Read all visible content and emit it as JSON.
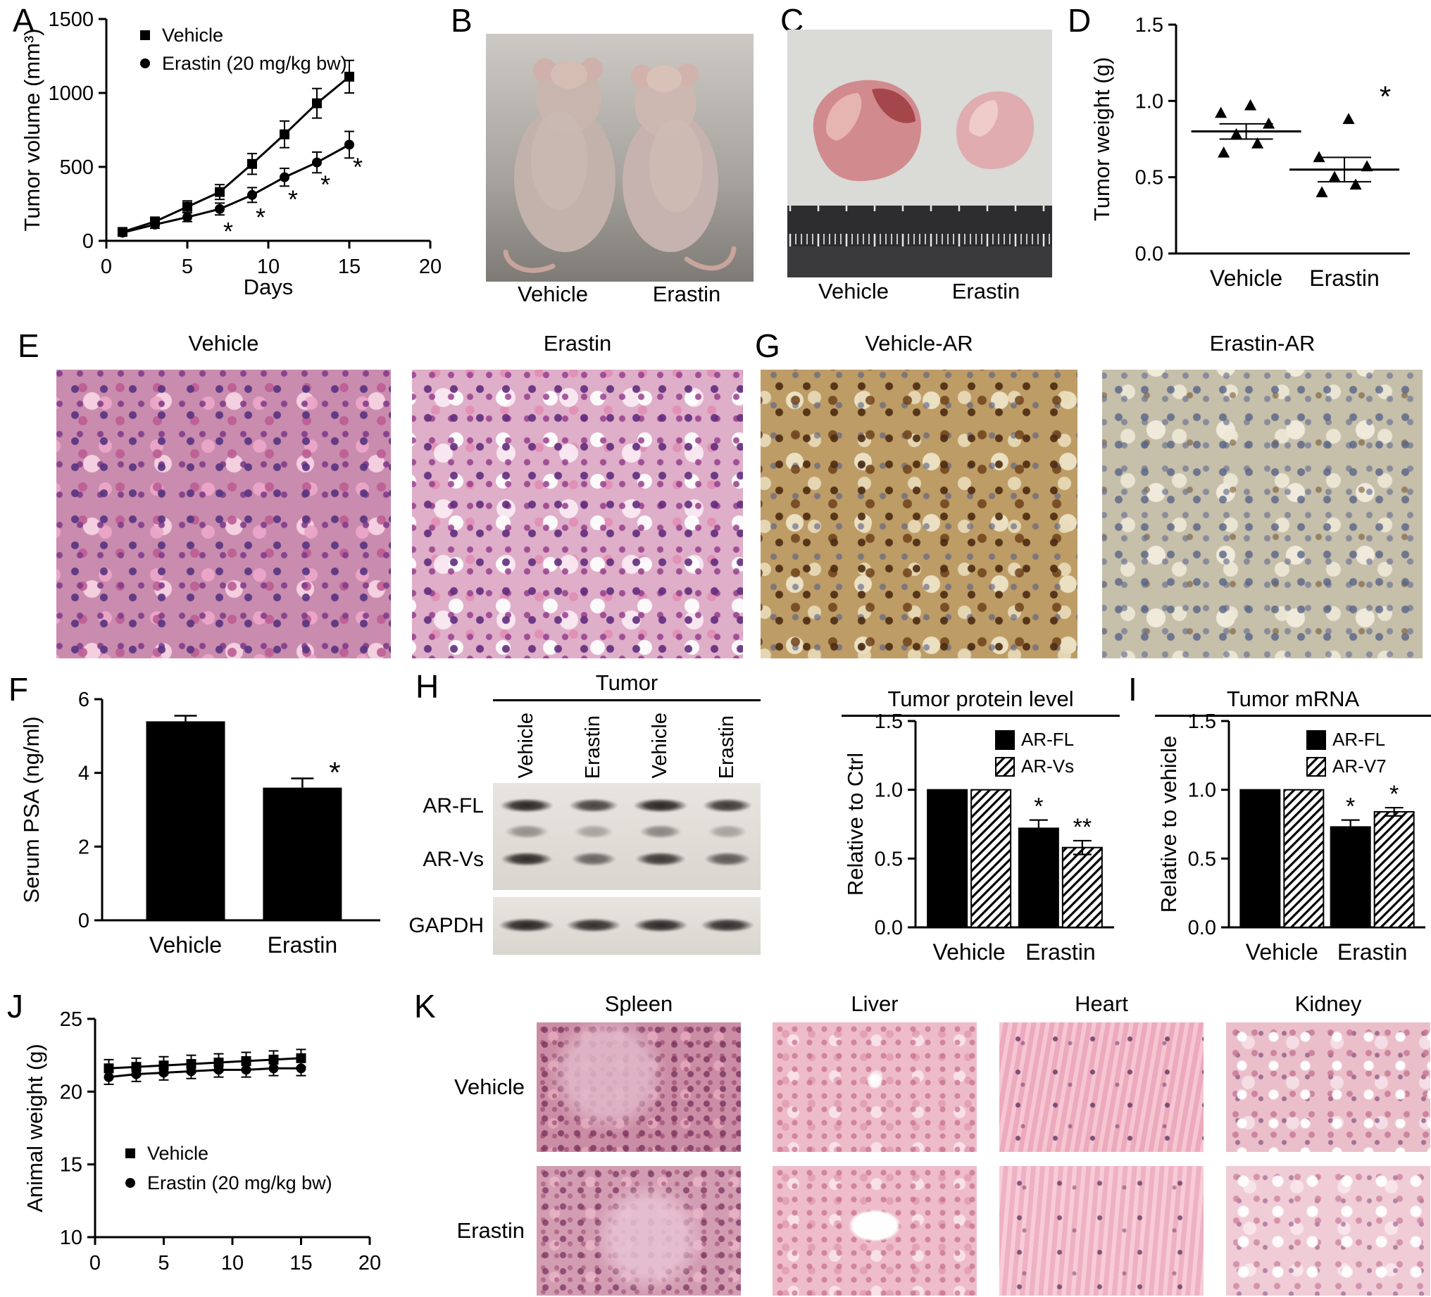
{
  "panels": {
    "A": {
      "letter": "A"
    },
    "B": {
      "letter": "B",
      "labels": [
        "Vehicle",
        "Erastin"
      ]
    },
    "C": {
      "letter": "C",
      "labels": [
        "Vehicle",
        "Erastin"
      ]
    },
    "D": {
      "letter": "D"
    },
    "E": {
      "letter": "E",
      "labels": [
        "Vehicle",
        "Erastin"
      ]
    },
    "F": {
      "letter": "F"
    },
    "G": {
      "letter": "G",
      "labels": [
        "Vehicle-AR",
        "Erastin-AR"
      ]
    },
    "H": {
      "letter": "H",
      "blot": {
        "title": "Tumor",
        "lanes": [
          "Vehicle",
          "Erastin",
          "Vehicle",
          "Erastin"
        ],
        "bands": [
          "AR-FL",
          "AR-Vs",
          "GAPDH"
        ]
      }
    },
    "I": {
      "letter": "I"
    },
    "J": {
      "letter": "J"
    },
    "K": {
      "letter": "K",
      "columns": [
        "Spleen",
        "Liver",
        "Heart",
        "Kidney"
      ],
      "rows": [
        "Vehicle",
        "Erastin"
      ]
    }
  },
  "chart_data": [
    {
      "panel": "A",
      "type": "line",
      "xlabel": "Days",
      "ylabel": "Tumor volume (mm³)",
      "xlim": [
        0,
        20
      ],
      "ylim": [
        0,
        1500
      ],
      "xticks": [
        0,
        5,
        10,
        15,
        20
      ],
      "yticks": [
        0,
        500,
        1000,
        1500
      ],
      "x": [
        1,
        3,
        5,
        7,
        9,
        11,
        13,
        15
      ],
      "series": [
        {
          "name": "Vehicle",
          "marker": "square",
          "values": [
            60,
            130,
            230,
            330,
            520,
            720,
            930,
            1110
          ],
          "errors": [
            20,
            30,
            40,
            50,
            70,
            90,
            100,
            110
          ]
        },
        {
          "name": "Erastin (20 mg/kg bw)",
          "marker": "circle",
          "values": [
            55,
            110,
            160,
            215,
            310,
            430,
            530,
            650
          ],
          "errors": [
            15,
            25,
            30,
            40,
            50,
            60,
            70,
            90
          ]
        }
      ],
      "asterisks": {
        "series": 1,
        "x": [
          7,
          9,
          11,
          13,
          15
        ],
        "label": "*"
      }
    },
    {
      "panel": "D",
      "type": "scatter",
      "ylabel": "Tumor weight (g)",
      "ylim": [
        0,
        1.5
      ],
      "yticks": [
        "0.0",
        "0.5",
        "1.0",
        "1.5"
      ],
      "groups": [
        {
          "name": "Vehicle",
          "mean": 0.8,
          "sem": 0.05,
          "points": [
            0.66,
            0.72,
            0.78,
            0.85,
            0.92,
            0.97
          ]
        },
        {
          "name": "Erastin",
          "mean": 0.55,
          "sem": 0.08,
          "points": [
            0.4,
            0.45,
            0.5,
            0.57,
            0.63,
            0.88
          ],
          "annotation": "*"
        }
      ]
    },
    {
      "panel": "F",
      "type": "bar",
      "ylabel": "Serum PSA (ng/ml)",
      "ylim": [
        0,
        6
      ],
      "yticks": [
        0,
        2,
        4,
        6
      ],
      "categories": [
        "Vehicle",
        "Erastin"
      ],
      "values": [
        5.4,
        3.6
      ],
      "errors": [
        0.15,
        0.25
      ],
      "annotations": [
        "",
        "*"
      ]
    },
    {
      "panel": "H",
      "type": "grouped-bar",
      "title": "Tumor protein level",
      "ylabel": "Relative to Ctrl",
      "ylim": [
        0,
        1.5
      ],
      "yticks": [
        "0.0",
        "0.5",
        "1.0",
        "1.5"
      ],
      "categories": [
        "Vehicle",
        "Erastin"
      ],
      "series": [
        {
          "name": "AR-FL",
          "fill": "solid",
          "values": [
            1.0,
            0.72
          ],
          "errors": [
            0,
            0.06
          ],
          "annotations": [
            "",
            "*"
          ]
        },
        {
          "name": "AR-Vs",
          "fill": "hatch",
          "values": [
            1.0,
            0.58
          ],
          "errors": [
            0,
            0.05
          ],
          "annotations": [
            "",
            "**"
          ]
        }
      ]
    },
    {
      "panel": "I",
      "type": "grouped-bar",
      "title": "Tumor mRNA",
      "ylabel": "Relative to vehicle",
      "ylim": [
        0,
        1.5
      ],
      "yticks": [
        "0.0",
        "0.5",
        "1.0",
        "1.5"
      ],
      "categories": [
        "Vehicle",
        "Erastin"
      ],
      "series": [
        {
          "name": "AR-FL",
          "fill": "solid",
          "values": [
            1.0,
            0.73
          ],
          "errors": [
            0,
            0.05
          ],
          "annotations": [
            "",
            "*"
          ]
        },
        {
          "name": "AR-V7",
          "fill": "hatch",
          "values": [
            1.0,
            0.84
          ],
          "errors": [
            0,
            0.03
          ],
          "annotations": [
            "",
            "*"
          ]
        }
      ]
    },
    {
      "panel": "J",
      "type": "line",
      "xlabel": "",
      "ylabel": "Animal weight (g)",
      "xlim": [
        0,
        20
      ],
      "ylim": [
        10,
        25
      ],
      "xticks": [
        0,
        5,
        10,
        15,
        20
      ],
      "yticks": [
        10,
        15,
        20,
        25
      ],
      "x": [
        1,
        3,
        5,
        7,
        9,
        11,
        13,
        15
      ],
      "series": [
        {
          "name": "Vehicle",
          "marker": "square",
          "values": [
            21.6,
            21.7,
            21.8,
            21.9,
            22.0,
            22.1,
            22.2,
            22.3
          ],
          "errors": [
            0.6,
            0.6,
            0.6,
            0.6,
            0.6,
            0.6,
            0.6,
            0.6
          ]
        },
        {
          "name": "Erastin (20 mg/kg bw)",
          "marker": "circle",
          "values": [
            21.0,
            21.2,
            21.3,
            21.4,
            21.5,
            21.5,
            21.6,
            21.6
          ],
          "errors": [
            0.5,
            0.5,
            0.5,
            0.5,
            0.5,
            0.5,
            0.5,
            0.5
          ]
        }
      ]
    }
  ]
}
